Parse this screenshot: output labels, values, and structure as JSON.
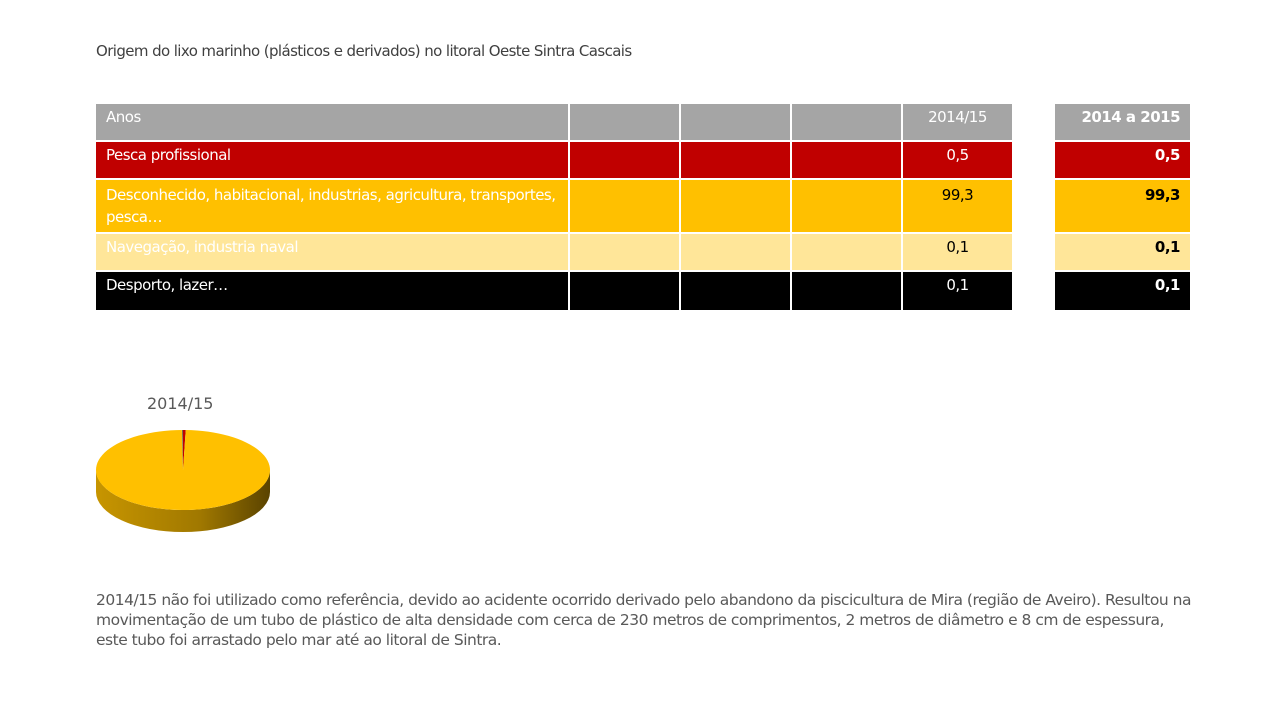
{
  "title": "Origem do lixo marinho (plásticos e derivados) no litoral Oeste Sintra Cascais",
  "table": {
    "header": "Anos",
    "year": "2014/15",
    "rows": [
      {
        "label": "Pesca profissional",
        "value": "0,5",
        "color": "#c00000"
      },
      {
        "label": "Desconhecido, habitacional, industrias, agricultura, transportes, pesca…",
        "value": "99,3",
        "color": "#ffc000"
      },
      {
        "label": "Navegação, industria naval",
        "value": "0,1",
        "color": "#ffe699"
      },
      {
        "label": "Desporto, lazer…",
        "value": "0,1",
        "color": "#000000"
      }
    ]
  },
  "summary": {
    "header": "2014 a 2015",
    "values": [
      "0,5",
      "99,3",
      "0,1",
      "0,1"
    ]
  },
  "chart_data": {
    "type": "pie",
    "title": "2014/15",
    "categories": [
      "Pesca profissional",
      "Desconhecido, habitacional, industrias, agricultura, transportes, pesca…",
      "Navegação, industria naval",
      "Desporto, lazer…"
    ],
    "values": [
      0.5,
      99.3,
      0.1,
      0.1
    ],
    "colors": [
      "#c00000",
      "#ffc000",
      "#ffe699",
      "#000000"
    ]
  },
  "note": "2014/15 não foi utilizado como referência, devido ao acidente ocorrido derivado pelo abandono da piscicultura de Mira (região de Aveiro). Resultou na movimentação de um tubo de plástico de alta densidade com cerca de 230 metros de comprimentos, 2 metros de diâmetro e 8 cm de espessura, este tubo foi arrastado pelo mar até ao litoral de Sintra."
}
